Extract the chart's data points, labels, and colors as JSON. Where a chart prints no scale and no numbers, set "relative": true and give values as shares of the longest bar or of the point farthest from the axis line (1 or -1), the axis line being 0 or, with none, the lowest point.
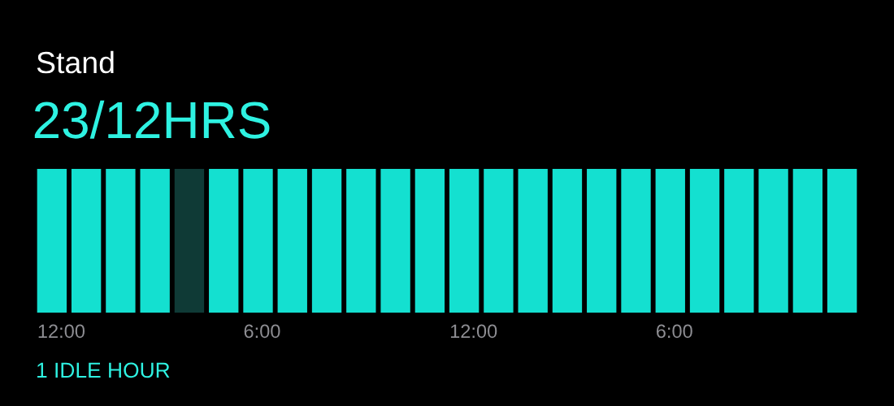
{
  "chart_data": {
    "type": "bar",
    "title": "Stand",
    "subtitle": "23/12HRS",
    "categories": [
      "12:00",
      null,
      null,
      null,
      null,
      null,
      "6:00",
      null,
      null,
      null,
      null,
      null,
      "12:00",
      null,
      null,
      null,
      null,
      null,
      "6:00",
      null,
      null,
      null,
      null,
      null
    ],
    "values": [
      1,
      1,
      1,
      1,
      1,
      1,
      1,
      1,
      1,
      1,
      1,
      1,
      1,
      1,
      1,
      1,
      1,
      1,
      1,
      1,
      1,
      1,
      1,
      1
    ],
    "colors": [
      "#14e0d0",
      "#14e0d0",
      "#14e0d0",
      "#14e0d0",
      "#0f3a36",
      "#14e0d0",
      "#14e0d0",
      "#14e0d0",
      "#14e0d0",
      "#14e0d0",
      "#14e0d0",
      "#14e0d0",
      "#14e0d0",
      "#14e0d0",
      "#14e0d0",
      "#14e0d0",
      "#14e0d0",
      "#14e0d0",
      "#14e0d0",
      "#14e0d0",
      "#14e0d0",
      "#14e0d0",
      "#14e0d0",
      "#14e0d0"
    ],
    "relative": true,
    "annotations": [
      "1 IDLE HOUR"
    ]
  }
}
